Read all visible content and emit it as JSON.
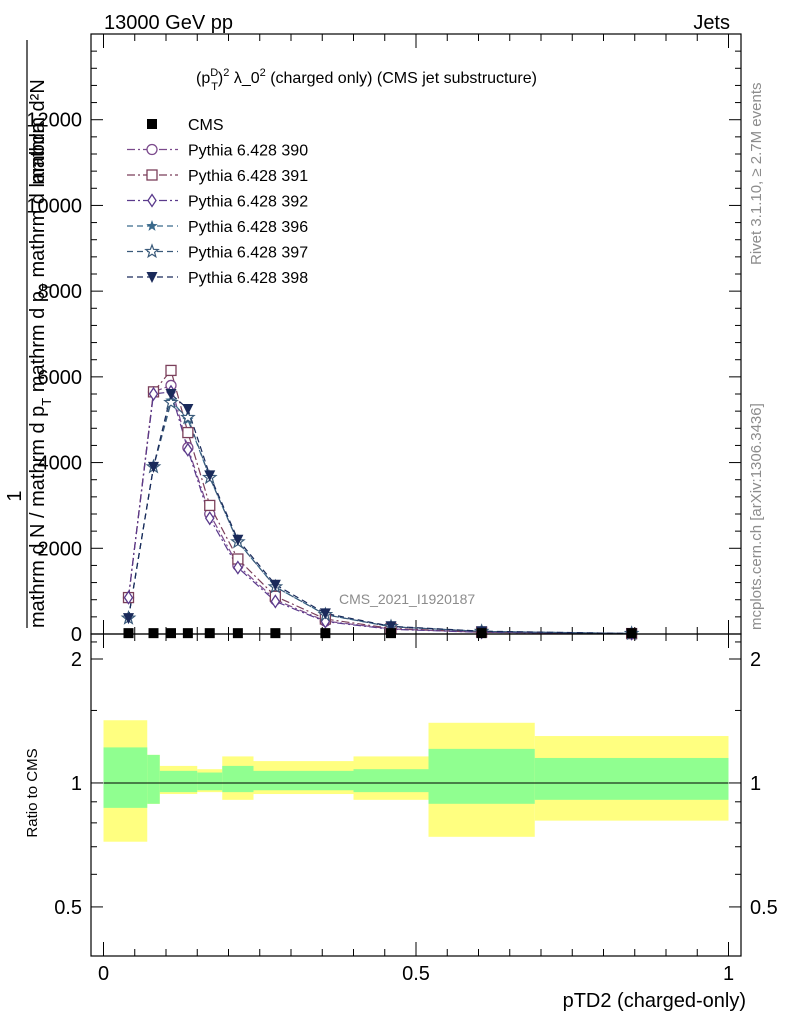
{
  "header": {
    "left": "13000 GeV pp",
    "right": "Jets"
  },
  "side": {
    "rivet": "Rivet 3.1.10, ≥ 2.7M events",
    "mcplots": "mcplots.cern.ch [arXiv:1306.3436]"
  },
  "chart_data": [
    {
      "type": "line",
      "title_parts": {
        "p": "(p",
        "sup_D": "D",
        "sub_T": "T",
        "close": ")",
        "sup_2": "2",
        "mid": " λ_0",
        "sup_2b": "2",
        "tail": " (charged only) (CMS jet substructure)"
      },
      "ylabel": {
        "one": "1",
        "num": "mathrm d²N",
        "den": "mathrm d N / mathrm d p",
        "den_sub": "T",
        "den2": " mathrm d p",
        "den2_sub": "T",
        "den3": " mathrm d lambda"
      },
      "watermark": "CMS_2021_I1920187",
      "xlim": [
        -0.02,
        1.02
      ],
      "ylim": [
        0,
        14000
      ],
      "yticks": [
        0,
        2000,
        4000,
        6000,
        8000,
        10000,
        12000
      ],
      "ytick_labels": [
        "0",
        "2000",
        "4000",
        "6000",
        "8000",
        "10000",
        "12000"
      ],
      "legend_placement": "top-left",
      "x": [
        0.04,
        0.08,
        0.108,
        0.135,
        0.17,
        0.215,
        0.275,
        0.355,
        0.46,
        0.605,
        0.845
      ],
      "cms": [
        20,
        20,
        20,
        20,
        20,
        20,
        20,
        20,
        20,
        20,
        20
      ],
      "series": [
        {
          "name": "CMS",
          "color": "#000000",
          "marker": "square-filled",
          "dash": "none"
        },
        {
          "name": "Pythia 6.428 390",
          "color": "#7b4a8c",
          "marker": "circle-open",
          "dash": "dashdot",
          "values": [
            850,
            5650,
            5800,
            4350,
            2800,
            1600,
            800,
            300,
            120,
            40,
            10
          ]
        },
        {
          "name": "Pythia 6.428 391",
          "color": "#7b3f5a",
          "marker": "square-open",
          "dash": "dashdot",
          "values": [
            850,
            5650,
            6150,
            4700,
            3000,
            1750,
            880,
            350,
            130,
            45,
            10
          ]
        },
        {
          "name": "Pythia 6.428 392",
          "color": "#5a3a8c",
          "marker": "diamond-open",
          "dash": "dashdot",
          "values": [
            850,
            5600,
            5650,
            4300,
            2700,
            1550,
            760,
            290,
            110,
            40,
            10
          ]
        },
        {
          "name": "Pythia 6.428 396",
          "color": "#3a6a8c",
          "marker": "star-filled",
          "dash": "dashed",
          "values": [
            370,
            3900,
            5450,
            5000,
            3650,
            2150,
            1100,
            450,
            170,
            60,
            12
          ]
        },
        {
          "name": "Pythia 6.428 397",
          "color": "#3a5a7a",
          "marker": "star-open",
          "dash": "dashed",
          "values": [
            370,
            3900,
            5400,
            5050,
            3650,
            2150,
            1100,
            450,
            170,
            60,
            12
          ]
        },
        {
          "name": "Pythia 6.428 398",
          "color": "#1a2a5a",
          "marker": "triangle-down-filled",
          "dash": "dashed",
          "values": [
            370,
            3900,
            5600,
            5250,
            3700,
            2200,
            1150,
            480,
            180,
            65,
            12
          ]
        }
      ]
    },
    {
      "type": "area",
      "ylabel": "Ratio to CMS",
      "xlabel": "pTD2 (charged-only)",
      "xlim": [
        -0.02,
        1.02
      ],
      "ylim": [
        0.38,
        2.3
      ],
      "yticks": [
        0.5,
        1,
        2
      ],
      "ytick_labels": [
        "0.5",
        "1",
        "2"
      ],
      "xticks": [
        0,
        0.5,
        1
      ],
      "xtick_labels": [
        "0",
        "0.5",
        "1"
      ],
      "reference": 1,
      "bins": [
        {
          "x": [
            0.0,
            0.07
          ],
          "inner": [
            0.87,
            1.22
          ],
          "outer": [
            0.72,
            1.42
          ]
        },
        {
          "x": [
            0.07,
            0.09
          ],
          "inner": [
            0.89,
            1.17
          ],
          "outer": [
            0.89,
            1.17
          ]
        },
        {
          "x": [
            0.09,
            0.15
          ],
          "inner": [
            0.95,
            1.07
          ],
          "outer": [
            0.94,
            1.1
          ]
        },
        {
          "x": [
            0.15,
            0.19
          ],
          "inner": [
            0.96,
            1.06
          ],
          "outer": [
            0.95,
            1.08
          ]
        },
        {
          "x": [
            0.19,
            0.24
          ],
          "inner": [
            0.95,
            1.1
          ],
          "outer": [
            0.91,
            1.16
          ]
        },
        {
          "x": [
            0.24,
            0.4
          ],
          "inner": [
            0.96,
            1.07
          ],
          "outer": [
            0.94,
            1.13
          ]
        },
        {
          "x": [
            0.4,
            0.52
          ],
          "inner": [
            0.95,
            1.08
          ],
          "outer": [
            0.91,
            1.16
          ]
        },
        {
          "x": [
            0.52,
            0.69
          ],
          "inner": [
            0.89,
            1.21
          ],
          "outer": [
            0.74,
            1.4
          ]
        },
        {
          "x": [
            0.69,
            1.0
          ],
          "inner": [
            0.91,
            1.15
          ],
          "outer": [
            0.81,
            1.3
          ]
        }
      ]
    }
  ]
}
